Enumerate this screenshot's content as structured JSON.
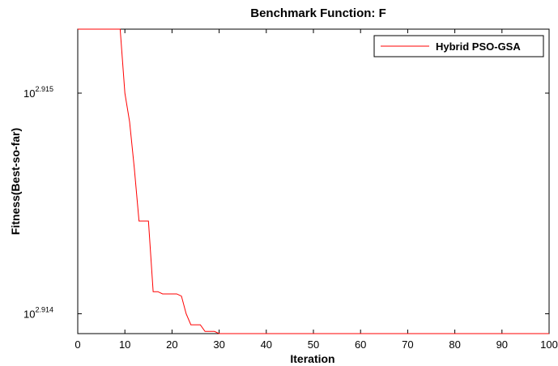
{
  "chart_data": {
    "type": "line",
    "title": "Benchmark Function: F",
    "xlabel": "Iteration",
    "ylabel": "Fitness(Best-so-far)",
    "xlim": [
      0,
      100
    ],
    "ylim_log10": [
      2.91391,
      2.91529
    ],
    "y_scale": "log",
    "grid": false,
    "legend": {
      "position": "top-right",
      "entries": [
        "Hybrid PSO-GSA"
      ]
    },
    "x_ticks": [
      "0",
      "10",
      "20",
      "30",
      "40",
      "50",
      "60",
      "70",
      "80",
      "90",
      "100"
    ],
    "y_ticks": [
      {
        "base": "10",
        "exp": "2.914",
        "log10": 2.914
      },
      {
        "base": "10",
        "exp": "2.915",
        "log10": 2.915
      }
    ],
    "series": [
      {
        "name": "Hybrid PSO-GSA",
        "color": "#ff0000",
        "x": [
          0,
          9,
          10,
          11,
          12,
          13,
          14,
          15,
          16,
          17,
          18,
          19,
          20,
          21,
          22,
          23,
          24,
          25,
          26,
          27,
          28,
          29,
          30,
          100
        ],
        "log10_y": [
          2.91529,
          2.91529,
          2.915,
          2.91487,
          2.91466,
          2.91442,
          2.91442,
          2.91442,
          2.9141,
          2.9141,
          2.91409,
          2.91409,
          2.91409,
          2.91409,
          2.91408,
          2.914,
          2.91395,
          2.91395,
          2.91395,
          2.91392,
          2.91392,
          2.91392,
          2.91391,
          2.91391
        ]
      }
    ]
  }
}
